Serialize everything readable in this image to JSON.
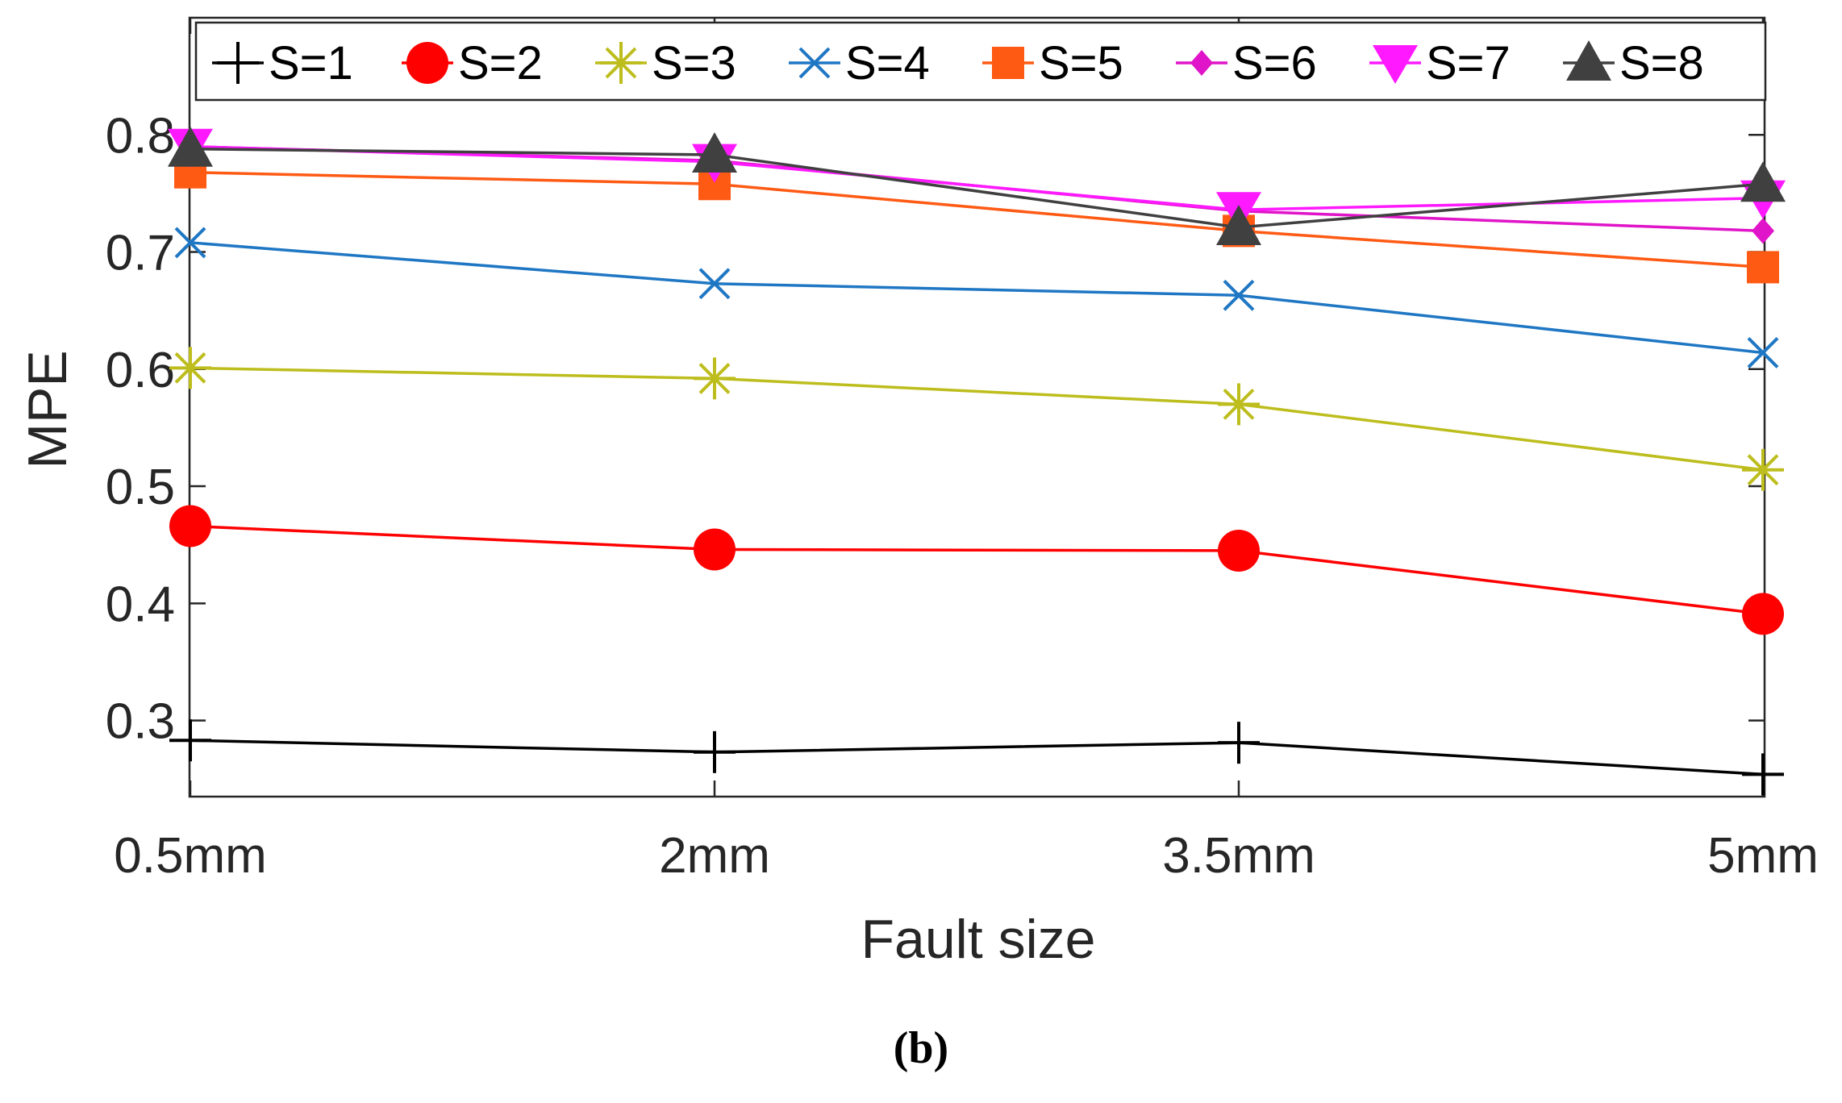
{
  "chart_data": {
    "type": "line",
    "title": "",
    "xlabel": "Fault size",
    "ylabel": "MPE",
    "categories": [
      "0.5mm",
      "2mm",
      "3.5mm",
      "5mm"
    ],
    "ylim": [
      0.235,
      0.9
    ],
    "yticks": [
      "0.3",
      "0.4",
      "0.5",
      "0.6",
      "0.7",
      "0.8"
    ],
    "yticks_values": [
      0.3,
      0.4,
      0.5,
      0.6,
      0.7,
      0.8
    ],
    "legend_position": "top",
    "caption": "(b)",
    "series": [
      {
        "name": "S=1",
        "color": "#000000",
        "marker": "plus",
        "values": [
          0.283,
          0.273,
          0.281,
          0.254
        ]
      },
      {
        "name": "S=2",
        "color": "#ff0000",
        "marker": "circle",
        "values": [
          0.466,
          0.446,
          0.445,
          0.391
        ]
      },
      {
        "name": "S=3",
        "color": "#bdbd1d",
        "marker": "asterisk",
        "values": [
          0.601,
          0.592,
          0.57,
          0.514
        ]
      },
      {
        "name": "S=4",
        "color": "#1f77c4",
        "marker": "x",
        "values": [
          0.708,
          0.673,
          0.663,
          0.614
        ]
      },
      {
        "name": "S=5",
        "color": "#ff5a14",
        "marker": "square",
        "values": [
          0.768,
          0.758,
          0.718,
          0.687
        ]
      },
      {
        "name": "S=6",
        "color": "#e014c8",
        "marker": "diamond",
        "values": [
          0.79,
          0.778,
          0.735,
          0.718
        ]
      },
      {
        "name": "S=7",
        "color": "#ff19ff",
        "marker": "triangle-down",
        "values": [
          0.79,
          0.777,
          0.736,
          0.746
        ]
      },
      {
        "name": "S=8",
        "color": "#404040",
        "marker": "triangle-up",
        "values": [
          0.788,
          0.783,
          0.721,
          0.758
        ]
      }
    ]
  }
}
